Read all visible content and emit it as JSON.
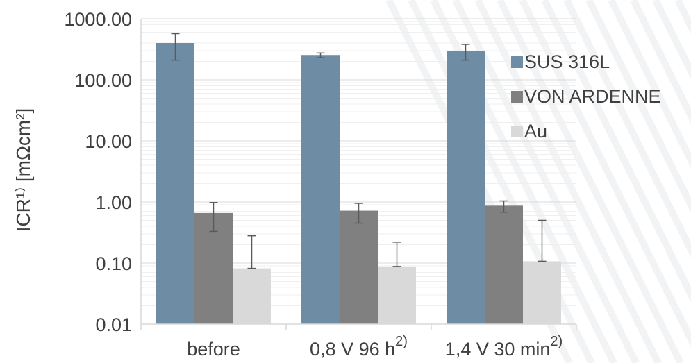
{
  "chart_data": {
    "type": "bar",
    "y_scale": "log",
    "ylim": [
      0.01,
      1000
    ],
    "ylabel": "ICR¹⁾ [mΩcm²]",
    "xlabel": "",
    "title": "",
    "yticks": [
      "1000.00",
      "100.00",
      "10.00",
      "1.00",
      "0.10",
      "0.01"
    ],
    "categories": [
      {
        "label": "before",
        "note": ""
      },
      {
        "label": "0,8 V 96 h",
        "note": "2)"
      },
      {
        "label": "1,4 V 30 min",
        "note": "2)"
      }
    ],
    "grid": true,
    "legend_position": "right",
    "series": [
      {
        "name": "SUS 316L",
        "color": "#6e8ca3",
        "values": [
          400,
          255,
          300
        ],
        "err_low": [
          210,
          230,
          210
        ],
        "err_high": [
          570,
          275,
          380
        ]
      },
      {
        "name": "VON ARDENNE",
        "color": "#808080",
        "values": [
          0.66,
          0.72,
          0.87
        ],
        "err_low": [
          0.33,
          0.45,
          0.68
        ],
        "err_high": [
          0.98,
          0.95,
          1.04
        ]
      },
      {
        "name": "Au",
        "color": "#d9d9d9",
        "values": [
          0.082,
          0.088,
          0.107
        ],
        "err_low": [
          0.082,
          0.088,
          0.107
        ],
        "err_high": [
          0.28,
          0.22,
          0.5
        ]
      }
    ],
    "errorbar_color": "#595959"
  }
}
